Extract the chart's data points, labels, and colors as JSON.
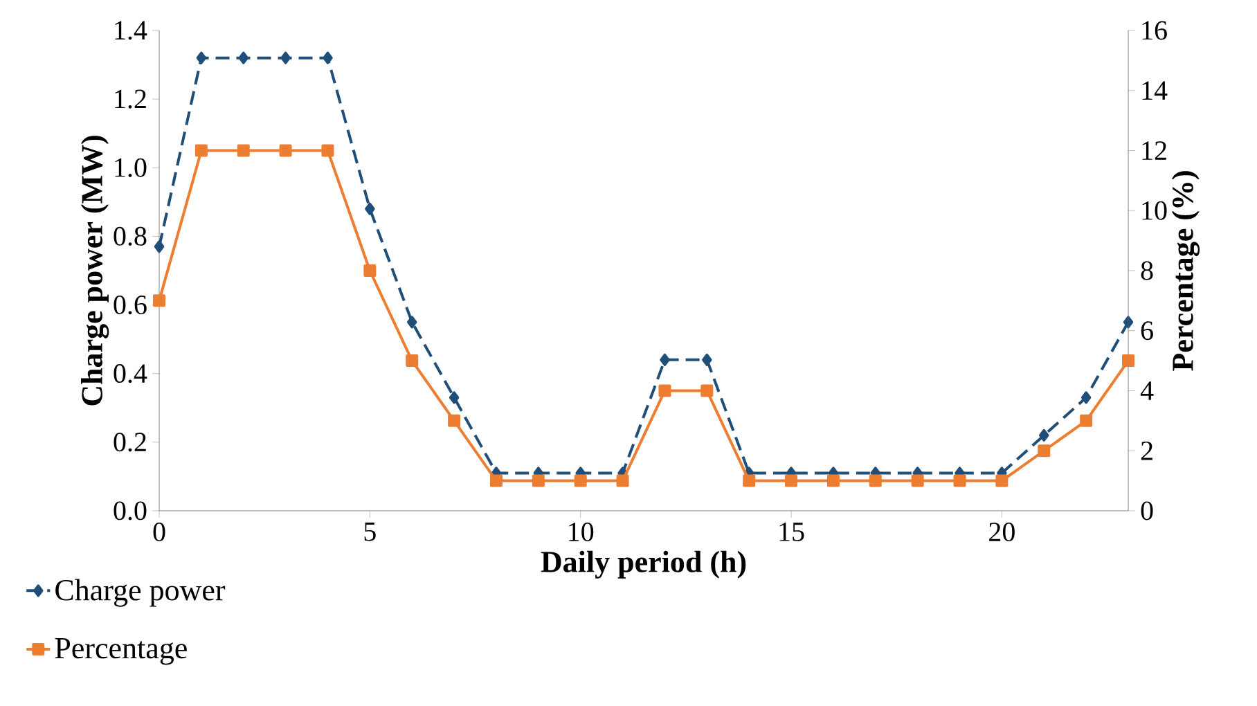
{
  "chart_data": {
    "type": "line",
    "xlabel": "Daily period (h)",
    "ylabel": "Charge power (MW)",
    "y2label": "Percentage (%)",
    "x": [
      0,
      1,
      2,
      3,
      4,
      5,
      6,
      7,
      8,
      9,
      10,
      11,
      12,
      13,
      14,
      15,
      16,
      17,
      18,
      19,
      20,
      21,
      22,
      23
    ],
    "series": [
      {
        "name": "Charge power",
        "color": "#1f4e79",
        "marker": "diamond",
        "line_style": "dashed",
        "values": [
          0.77,
          1.32,
          1.32,
          1.32,
          1.32,
          0.88,
          0.55,
          0.33,
          0.11,
          0.11,
          0.11,
          0.11,
          0.44,
          0.44,
          0.11,
          0.11,
          0.11,
          0.11,
          0.11,
          0.11,
          0.11,
          0.22,
          0.33,
          0.55
        ]
      },
      {
        "name": "Percentage",
        "color": "#ed7d31",
        "marker": "square",
        "line_style": "solid",
        "axis": "y2",
        "values": [
          7,
          12,
          12,
          12,
          12,
          8,
          5,
          3,
          1,
          1,
          1,
          1,
          4,
          4,
          1,
          1,
          1,
          1,
          1,
          1,
          1,
          2,
          3,
          5
        ]
      }
    ],
    "xlim": [
      0,
      23
    ],
    "xticks": [
      0,
      5,
      10,
      15,
      20
    ],
    "ylim": [
      0,
      1.4
    ],
    "yticks": [
      {
        "value": 0,
        "label": "0.0"
      },
      0.2,
      0.4,
      0.6,
      0.8,
      {
        "value": 1,
        "label": "1.0"
      },
      1.2,
      1.4
    ],
    "y2lim": [
      0,
      16
    ],
    "y2ticks": [
      0,
      2,
      4,
      6,
      8,
      10,
      12,
      14,
      16
    ],
    "legend": "bottom left",
    "grid": false
  }
}
